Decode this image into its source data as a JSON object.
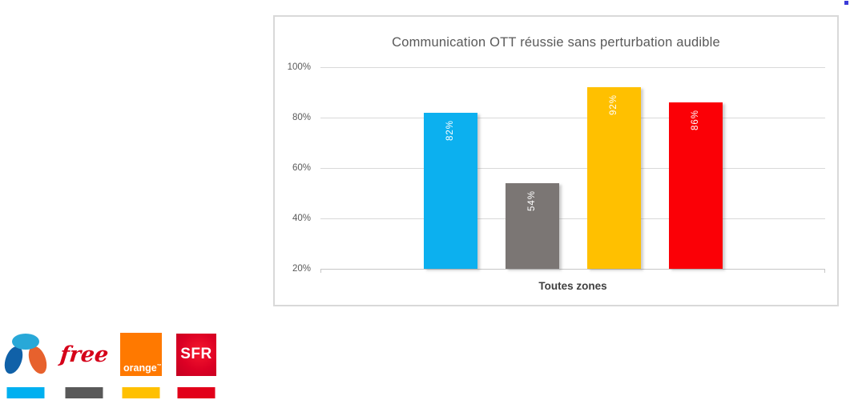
{
  "chart_data": {
    "type": "bar",
    "title": "Communication OTT réussie sans perturbation audible",
    "categories": [
      "Toutes zones"
    ],
    "xlabel": "Toutes zones",
    "series": [
      {
        "name": "Bouygues Telecom",
        "color": "#0cb0ef",
        "values": [
          82
        ],
        "data_label": "82%"
      },
      {
        "name": "Free",
        "color": "#7b7674",
        "values": [
          54
        ],
        "data_label": "54%"
      },
      {
        "name": "Orange",
        "color": "#ffc000",
        "values": [
          92
        ],
        "data_label": "92%"
      },
      {
        "name": "SFR",
        "color": "#fb0006",
        "values": [
          86
        ],
        "data_label": "86%"
      }
    ],
    "ylim": [
      20,
      100
    ],
    "y_tick_step": 20,
    "y_ticks": [
      "100%",
      "80%",
      "60%",
      "40%",
      "20%"
    ],
    "grid": true,
    "data_label_position": "inside-end-vertical",
    "legend_position": "operator-logos-bottom-left-of-page"
  },
  "legend": {
    "operators": [
      {
        "name": "Bouygues Telecom",
        "swatch_color": "#00b0f0"
      },
      {
        "name": "Free",
        "logo_text": "free",
        "logo_color": "#d50019",
        "swatch_color": "#595959"
      },
      {
        "name": "Orange",
        "logo_text": "orange",
        "logo_tm": "™",
        "logo_bg": "#ff7900",
        "swatch_color": "#ffc000"
      },
      {
        "name": "SFR",
        "logo_text": "SFR",
        "logo_bg": "#dc0024",
        "swatch_color": "#e2001a"
      }
    ]
  }
}
